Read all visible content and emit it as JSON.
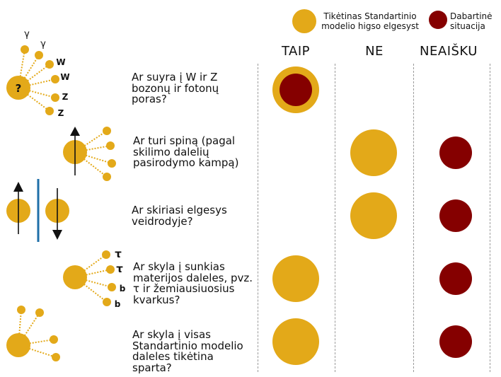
{
  "legend": {
    "expected": {
      "label_line1": "Tikėtinas Standartinio",
      "label_line2": "modelio higso elgesyst",
      "color": "#e3a919"
    },
    "current": {
      "label_line1": "Dabartinė",
      "label_line2": "situacija",
      "color": "#850000"
    }
  },
  "columns": {
    "yes": "TAIP",
    "no": "NE",
    "unclear": "NEAIŠKU"
  },
  "rows": [
    {
      "lines": [
        "Ar suyra į W ir Z",
        "bozonų ir fotonų",
        "poras?"
      ],
      "expected": "yes",
      "current": "yes",
      "icon": {
        "center_label": "?",
        "labels": [
          "γ",
          "γ",
          "W",
          "W",
          "Z",
          "Z"
        ]
      }
    },
    {
      "lines": [
        "Ar turi spiną (pagal",
        "skilimo dalelių",
        "pasirodymo kampą)"
      ],
      "expected": "no",
      "current": "unclear"
    },
    {
      "lines": [
        "Ar skiriasi elgesys",
        "veidrodyje?"
      ],
      "expected": "no",
      "current": "unclear"
    },
    {
      "lines": [
        "Ar skyla į sunkias",
        "materijos daleles, pvz.",
        "τ ir žemiausiuosius",
        "kvarkus?"
      ],
      "expected": "yes",
      "current": "unclear",
      "icon": {
        "labels": [
          "τ",
          "τ",
          "b",
          "b"
        ]
      }
    },
    {
      "lines": [
        "Ar skyla į visas",
        "Standartinio modelio",
        "daleles tikėtina",
        "sparta?"
      ],
      "expected": "yes",
      "current": "unclear"
    }
  ]
}
